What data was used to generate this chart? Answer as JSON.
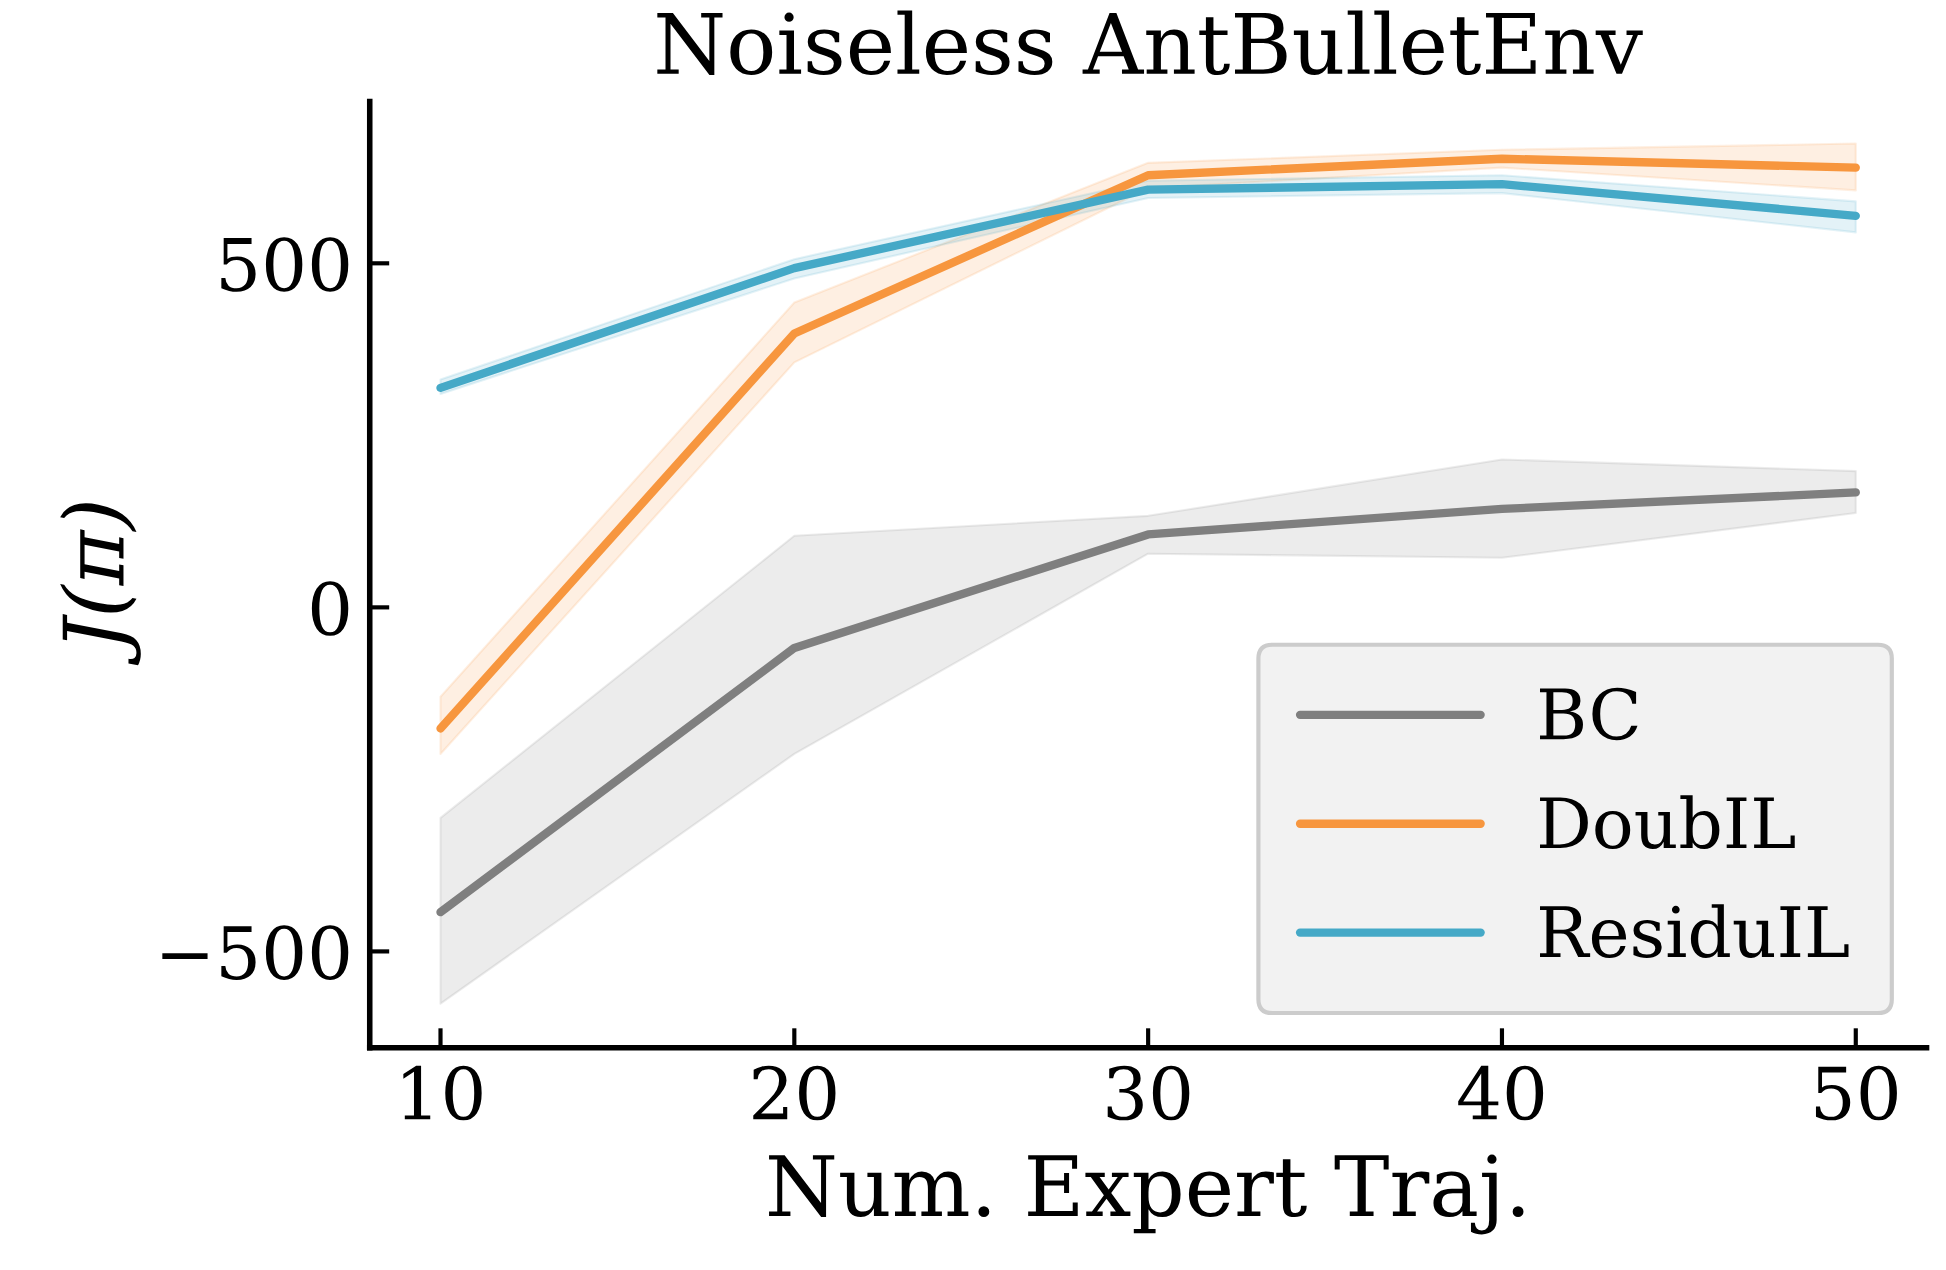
{
  "chart_data": {
    "type": "line",
    "title": "Noiseless AntBulletEnv",
    "xlabel": "Num. Expert Traj.",
    "ylabel": "J(π)",
    "x": [
      10,
      20,
      30,
      40,
      50
    ],
    "series": [
      {
        "name": "BC",
        "color": "#7f7f7f",
        "values": [
          -443,
          -59,
          106,
          143,
          167
        ],
        "lower": [
          -576,
          -213,
          78,
          72,
          137
        ],
        "upper": [
          -306,
          104,
          133,
          215,
          198
        ]
      },
      {
        "name": "DoubIL",
        "color": "#f7963e",
        "values": [
          -176,
          398,
          628,
          652,
          639
        ],
        "lower": [
          -213,
          356,
          609,
          639,
          606
        ],
        "upper": [
          -130,
          443,
          646,
          665,
          674
        ]
      },
      {
        "name": "ResiduIL",
        "color": "#45a9c7",
        "values": [
          319,
          493,
          607,
          615,
          569
        ],
        "lower": [
          310,
          478,
          595,
          602,
          545
        ],
        "upper": [
          331,
          506,
          620,
          628,
          590
        ]
      }
    ],
    "xlim": [
      8,
      52
    ],
    "ylim": [
      -640,
      735
    ],
    "xticks": [
      10,
      20,
      30,
      40,
      50
    ],
    "yticks": [
      {
        "value": -500,
        "label": "−500"
      },
      0,
      500
    ],
    "grid": false,
    "legend": "bottom right",
    "line_style": "solid",
    "marker": "none"
  }
}
